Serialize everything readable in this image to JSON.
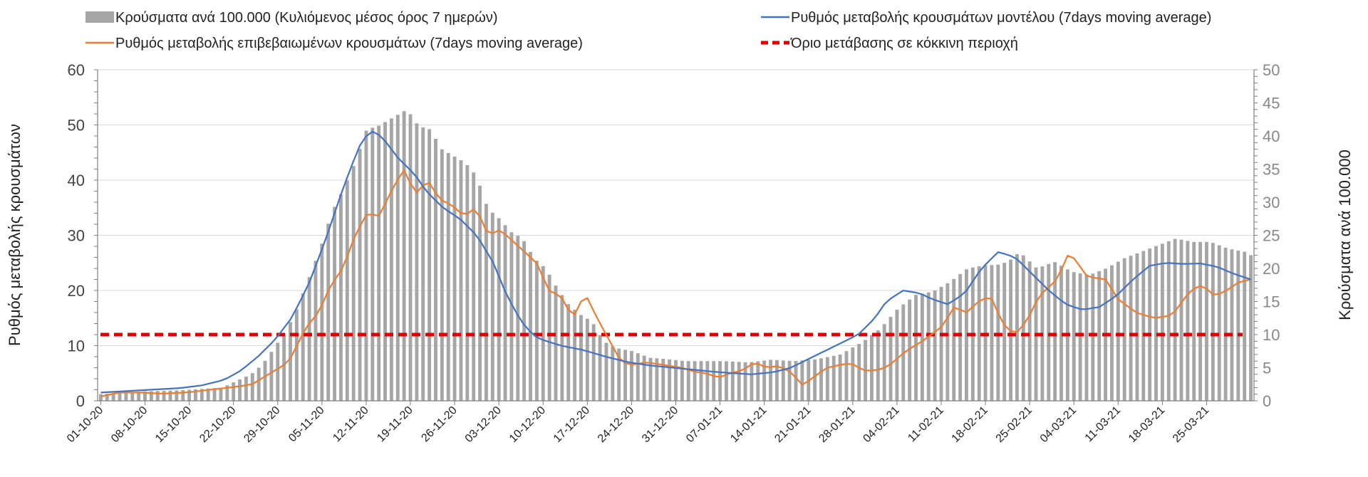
{
  "chart_data": {
    "type": "bar+line",
    "title": "",
    "ylabel_left": "Ρυθμός μεταβολής κρουσμάτων",
    "ylabel_right": "Κρούσματα ανά 100.000",
    "ylim_left": [
      0,
      60
    ],
    "ylim_right": [
      0,
      50
    ],
    "yticks_left": [
      "0",
      "10",
      "20",
      "30",
      "40",
      "50",
      "60"
    ],
    "yticks_right": [
      "0",
      "5",
      "10",
      "15",
      "20",
      "25",
      "30",
      "35",
      "40",
      "45",
      "50"
    ],
    "grid": true,
    "legend_position": "top",
    "legend": {
      "bars": "Κρούσματα ανά 100.000 (Κυλιόμενος μέσος όρος 7 ημερών)",
      "model": "Ρυθμός μεταβολής κρουσμάτων μοντέλου (7days moving average)",
      "confirmed": "Ρυθμός μεταβολής επιβεβαιωμένων κρουσμάτων (7days moving average)",
      "threshold": "Όριο μετάβασης σε κόκκινη περιοχή"
    },
    "colors": {
      "bars": "#a6a6a6",
      "model": "#4472c4",
      "confirmed": "#ed7d31",
      "threshold": "#e00000",
      "grid": "#d9d9d9",
      "axis": "#7f7f7f"
    },
    "x_tick_labels": [
      "01-10-20",
      "08-10-20",
      "15-10-20",
      "22-10-20",
      "29-10-20",
      "05-11-20",
      "12-11-20",
      "19-11-20",
      "26-11-20",
      "03-12-20",
      "10-12-20",
      "17-12-20",
      "24-12-20",
      "31-12-20",
      "07-01-21",
      "14-01-21",
      "21-01-21",
      "28-01-21",
      "04-02-21",
      "11-02-21",
      "18-02-21",
      "25-02-21",
      "04-03-21",
      "11-03-21",
      "18-03-21",
      "25-03-21"
    ],
    "n_days": 183,
    "bars_series_axis": "right",
    "bars_keypoints": [
      [
        0,
        1
      ],
      [
        7,
        1.4
      ],
      [
        14,
        1.6
      ],
      [
        21,
        2
      ],
      [
        26,
        4
      ],
      [
        28,
        5.5
      ],
      [
        30,
        8
      ],
      [
        32,
        10.5
      ],
      [
        34,
        14
      ],
      [
        36,
        18.5
      ],
      [
        38,
        23
      ],
      [
        40,
        28.5
      ],
      [
        42,
        32
      ],
      [
        44,
        36
      ],
      [
        46,
        41
      ],
      [
        48,
        41.5
      ],
      [
        50,
        42.5
      ],
      [
        52,
        43.5
      ],
      [
        53,
        44
      ],
      [
        55,
        41.5
      ],
      [
        57,
        41
      ],
      [
        59,
        38
      ],
      [
        61,
        37
      ],
      [
        63,
        36
      ],
      [
        65,
        34
      ],
      [
        67,
        29
      ],
      [
        69,
        27.5
      ],
      [
        71,
        25.5
      ],
      [
        73,
        24.5
      ],
      [
        75,
        21.5
      ],
      [
        77,
        20
      ],
      [
        79,
        17
      ],
      [
        81,
        14.5
      ],
      [
        83,
        13
      ],
      [
        85,
        12
      ],
      [
        87,
        9
      ],
      [
        89,
        8
      ],
      [
        92,
        7.5
      ],
      [
        95,
        6.5
      ],
      [
        98,
        6.3
      ],
      [
        101,
        6
      ],
      [
        104,
        6
      ],
      [
        108,
        6
      ],
      [
        112,
        5.8
      ],
      [
        116,
        6.2
      ],
      [
        120,
        6
      ],
      [
        124,
        6.3
      ],
      [
        128,
        7
      ],
      [
        132,
        9
      ],
      [
        135,
        11
      ],
      [
        138,
        14
      ],
      [
        141,
        16
      ],
      [
        144,
        16.5
      ],
      [
        147,
        18
      ],
      [
        150,
        20
      ],
      [
        153,
        20.5
      ],
      [
        155,
        20.5
      ],
      [
        157,
        21
      ],
      [
        159,
        22.5
      ],
      [
        162,
        20
      ],
      [
        165,
        21
      ],
      [
        168,
        19.5
      ],
      [
        171,
        19
      ],
      [
        174,
        20
      ],
      [
        177,
        21.5
      ],
      [
        180,
        22.5
      ],
      [
        183,
        23.5
      ],
      [
        186,
        24.5
      ],
      [
        189,
        24
      ],
      [
        192,
        24
      ],
      [
        195,
        23
      ],
      [
        198,
        22.5
      ],
      [
        199,
        22
      ]
    ],
    "model_series_axis": "left",
    "model_keypoints": [
      [
        0,
        1.5
      ],
      [
        7,
        1.9
      ],
      [
        14,
        2.3
      ],
      [
        18,
        2.8
      ],
      [
        22,
        3.8
      ],
      [
        25,
        5.5
      ],
      [
        28,
        8
      ],
      [
        31,
        11
      ],
      [
        34,
        15
      ],
      [
        37,
        21
      ],
      [
        40,
        29
      ],
      [
        43,
        38
      ],
      [
        46,
        46
      ],
      [
        48,
        49
      ],
      [
        50,
        48
      ],
      [
        53,
        44
      ],
      [
        56,
        41
      ],
      [
        58,
        38
      ],
      [
        61,
        35
      ],
      [
        64,
        33
      ],
      [
        67,
        30
      ],
      [
        70,
        25
      ],
      [
        72,
        20
      ],
      [
        74,
        16
      ],
      [
        76,
        13
      ],
      [
        78,
        11.3
      ],
      [
        82,
        10
      ],
      [
        86,
        9.2
      ],
      [
        90,
        8
      ],
      [
        94,
        7
      ],
      [
        98,
        6.4
      ],
      [
        104,
        5.8
      ],
      [
        110,
        5.2
      ],
      [
        116,
        4.8
      ],
      [
        120,
        5.2
      ],
      [
        123,
        6
      ],
      [
        126,
        7.5
      ],
      [
        129,
        9
      ],
      [
        132,
        10.5
      ],
      [
        135,
        12
      ],
      [
        138,
        15
      ],
      [
        140,
        18
      ],
      [
        143,
        20
      ],
      [
        146,
        19.5
      ],
      [
        148,
        18.5
      ],
      [
        151,
        17.5
      ],
      [
        154,
        19.5
      ],
      [
        157,
        24
      ],
      [
        160,
        27
      ],
      [
        163,
        26
      ],
      [
        166,
        23
      ],
      [
        169,
        20
      ],
      [
        172,
        17.5
      ],
      [
        175,
        16.5
      ],
      [
        178,
        17
      ],
      [
        181,
        19
      ],
      [
        184,
        22
      ],
      [
        187,
        24.5
      ],
      [
        190,
        25
      ],
      [
        193,
        24.8
      ],
      [
        196,
        24.9
      ],
      [
        199,
        24.3
      ],
      [
        202,
        23
      ],
      [
        205,
        22
      ]
    ],
    "confirmed_keypoints": [
      [
        0,
        0.8
      ],
      [
        3,
        1.5
      ],
      [
        7,
        1.5
      ],
      [
        10,
        1.3
      ],
      [
        14,
        1.5
      ],
      [
        18,
        2
      ],
      [
        22,
        2.5
      ],
      [
        25,
        3
      ],
      [
        28,
        5
      ],
      [
        31,
        7
      ],
      [
        34,
        13.5
      ],
      [
        36,
        16
      ],
      [
        38,
        21
      ],
      [
        40,
        24
      ],
      [
        42,
        30
      ],
      [
        44,
        34
      ],
      [
        46,
        33.5
      ],
      [
        48,
        38
      ],
      [
        50,
        42
      ],
      [
        52,
        37.5
      ],
      [
        54,
        40
      ],
      [
        56,
        36.5
      ],
      [
        58,
        35.5
      ],
      [
        60,
        33.5
      ],
      [
        62,
        35
      ],
      [
        64,
        30
      ],
      [
        66,
        31
      ],
      [
        68,
        29
      ],
      [
        70,
        27
      ],
      [
        72,
        25
      ],
      [
        74,
        20
      ],
      [
        76,
        19
      ],
      [
        78,
        15
      ],
      [
        80,
        19.5
      ],
      [
        82,
        15
      ],
      [
        84,
        11
      ],
      [
        86,
        7
      ],
      [
        88,
        6.5
      ],
      [
        90,
        7
      ],
      [
        93,
        6.5
      ],
      [
        96,
        6
      ],
      [
        98,
        5.3
      ],
      [
        100,
        5
      ],
      [
        102,
        4.2
      ],
      [
        104,
        5
      ],
      [
        106,
        5.5
      ],
      [
        108,
        7
      ],
      [
        110,
        6
      ],
      [
        112,
        6.3
      ],
      [
        114,
        5.2
      ],
      [
        116,
        2.8
      ],
      [
        118,
        4.5
      ],
      [
        120,
        6
      ],
      [
        122,
        6.5
      ],
      [
        124,
        6.8
      ],
      [
        126,
        5.5
      ],
      [
        128,
        5.5
      ],
      [
        130,
        6.2
      ],
      [
        133,
        9
      ],
      [
        136,
        11
      ],
      [
        139,
        13.5
      ],
      [
        141,
        17
      ],
      [
        143,
        16
      ],
      [
        145,
        18
      ],
      [
        147,
        19
      ],
      [
        149,
        14
      ],
      [
        151,
        12
      ],
      [
        153,
        14.5
      ],
      [
        155,
        19
      ],
      [
        158,
        22
      ],
      [
        160,
        27
      ],
      [
        163,
        22.5
      ],
      [
        166,
        22
      ],
      [
        168,
        18.5
      ],
      [
        171,
        16
      ],
      [
        174,
        15
      ],
      [
        177,
        15.5
      ],
      [
        180,
        20
      ],
      [
        182,
        21
      ],
      [
        184,
        19
      ],
      [
        186,
        20
      ],
      [
        188,
        21.5
      ],
      [
        190,
        22
      ]
    ],
    "threshold_value_left": 12,
    "threshold_x_range": [
      0,
      189
    ],
    "model_x_range_days": [
      0,
      205
    ],
    "confirmed_x_range_days": [
      0,
      190
    ]
  }
}
